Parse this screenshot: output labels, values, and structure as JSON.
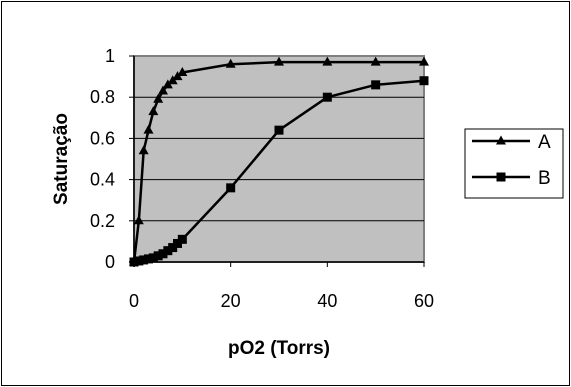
{
  "chart_data": {
    "type": "line",
    "title": "",
    "xlabel": "pO2 (Torrs)",
    "ylabel": "Saturação",
    "xlim": [
      0,
      60
    ],
    "ylim": [
      0,
      1
    ],
    "x_ticks": [
      "0",
      "20",
      "40",
      "60"
    ],
    "y_ticks": [
      "0",
      "0.2",
      "0.4",
      "0.6",
      "0.8",
      "1"
    ],
    "x_tick_values": [
      0,
      20,
      40,
      60
    ],
    "y_tick_values": [
      0,
      0.2,
      0.4,
      0.6,
      0.8,
      1
    ],
    "grid": "horizontal",
    "legend_position": "right",
    "plot_background": "#c0c0c0",
    "series": [
      {
        "name": "A",
        "marker": "triangle",
        "color": "#000000",
        "x": [
          0,
          1,
          2,
          3,
          4,
          5,
          6,
          7,
          8,
          9,
          10,
          20,
          30,
          40,
          50,
          60
        ],
        "y": [
          0,
          0.2,
          0.54,
          0.64,
          0.73,
          0.79,
          0.83,
          0.86,
          0.88,
          0.9,
          0.92,
          0.96,
          0.97,
          0.97,
          0.97,
          0.97
        ]
      },
      {
        "name": "B",
        "marker": "square",
        "color": "#000000",
        "x": [
          0,
          1,
          2,
          3,
          4,
          5,
          6,
          7,
          8,
          9,
          10,
          20,
          30,
          40,
          50,
          60
        ],
        "y": [
          0,
          0.005,
          0.01,
          0.015,
          0.02,
          0.03,
          0.04,
          0.055,
          0.07,
          0.09,
          0.11,
          0.36,
          0.64,
          0.8,
          0.86,
          0.88
        ]
      }
    ]
  }
}
